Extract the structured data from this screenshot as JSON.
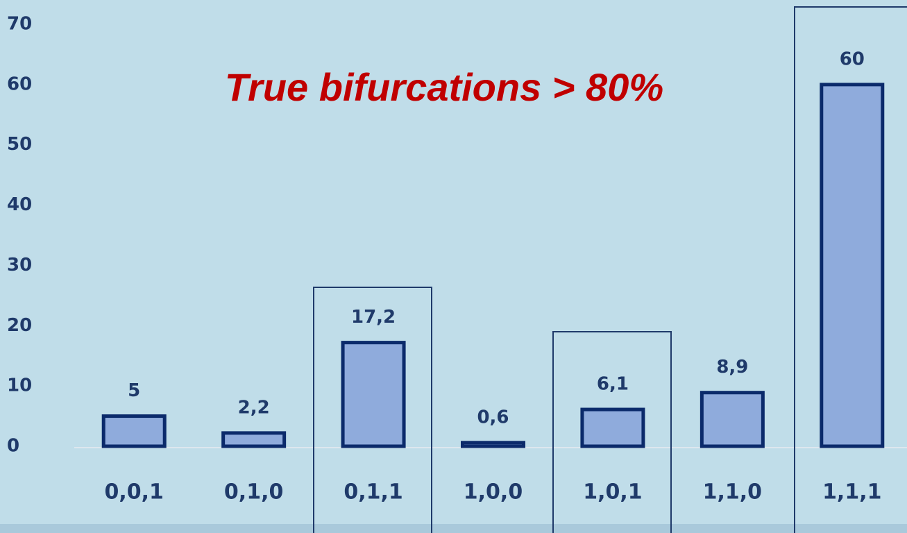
{
  "chart_data": {
    "type": "bar",
    "annotation": "True bifurcations > 80%",
    "categories": [
      "0,0,1",
      "0,1,0",
      "0,1,1",
      "1,0,0",
      "1,0,1",
      "1,1,0",
      "1,1,1"
    ],
    "values": [
      5,
      2.2,
      17.2,
      0.6,
      6.1,
      8.9,
      60
    ],
    "value_labels": [
      "5",
      "2,2",
      "17,2",
      "0,6",
      "6,1",
      "8,9",
      "60"
    ],
    "color": "#8fabdc",
    "ylim": [
      0,
      70
    ],
    "yticks": [
      0,
      10,
      20,
      30,
      40,
      50,
      60,
      70
    ],
    "grid": false
  }
}
